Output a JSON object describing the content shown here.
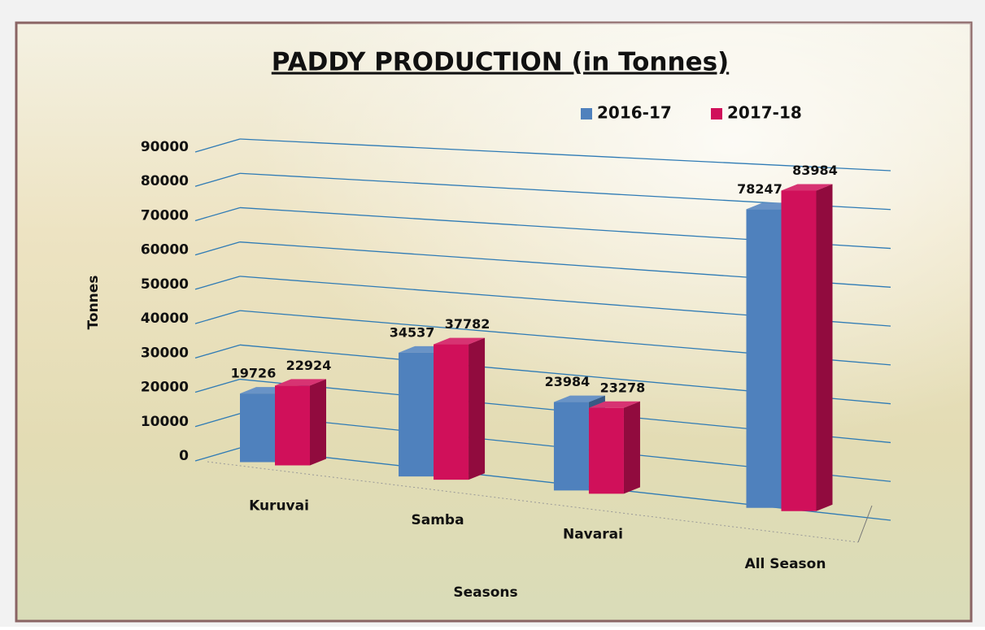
{
  "chart_data": {
    "type": "bar3d",
    "title": "PADDY PRODUCTION (in Tonnes)",
    "x_label": "Seasons",
    "y_label": "Tonnes",
    "categories": [
      "Kuruvai",
      "Samba",
      "Navarai",
      "All Season"
    ],
    "series": [
      {
        "name": "2016-17",
        "color": "#4f81bd",
        "values": [
          19726,
          34537,
          23984,
          78247
        ]
      },
      {
        "name": "2017-18",
        "color": "#d0105a",
        "values": [
          22924,
          37782,
          23278,
          83984
        ]
      }
    ],
    "ylim": [
      0,
      90000
    ],
    "yticks": [
      0,
      10000,
      20000,
      30000,
      40000,
      50000,
      60000,
      70000,
      80000,
      90000
    ],
    "grid": true,
    "legend": "top-right"
  }
}
